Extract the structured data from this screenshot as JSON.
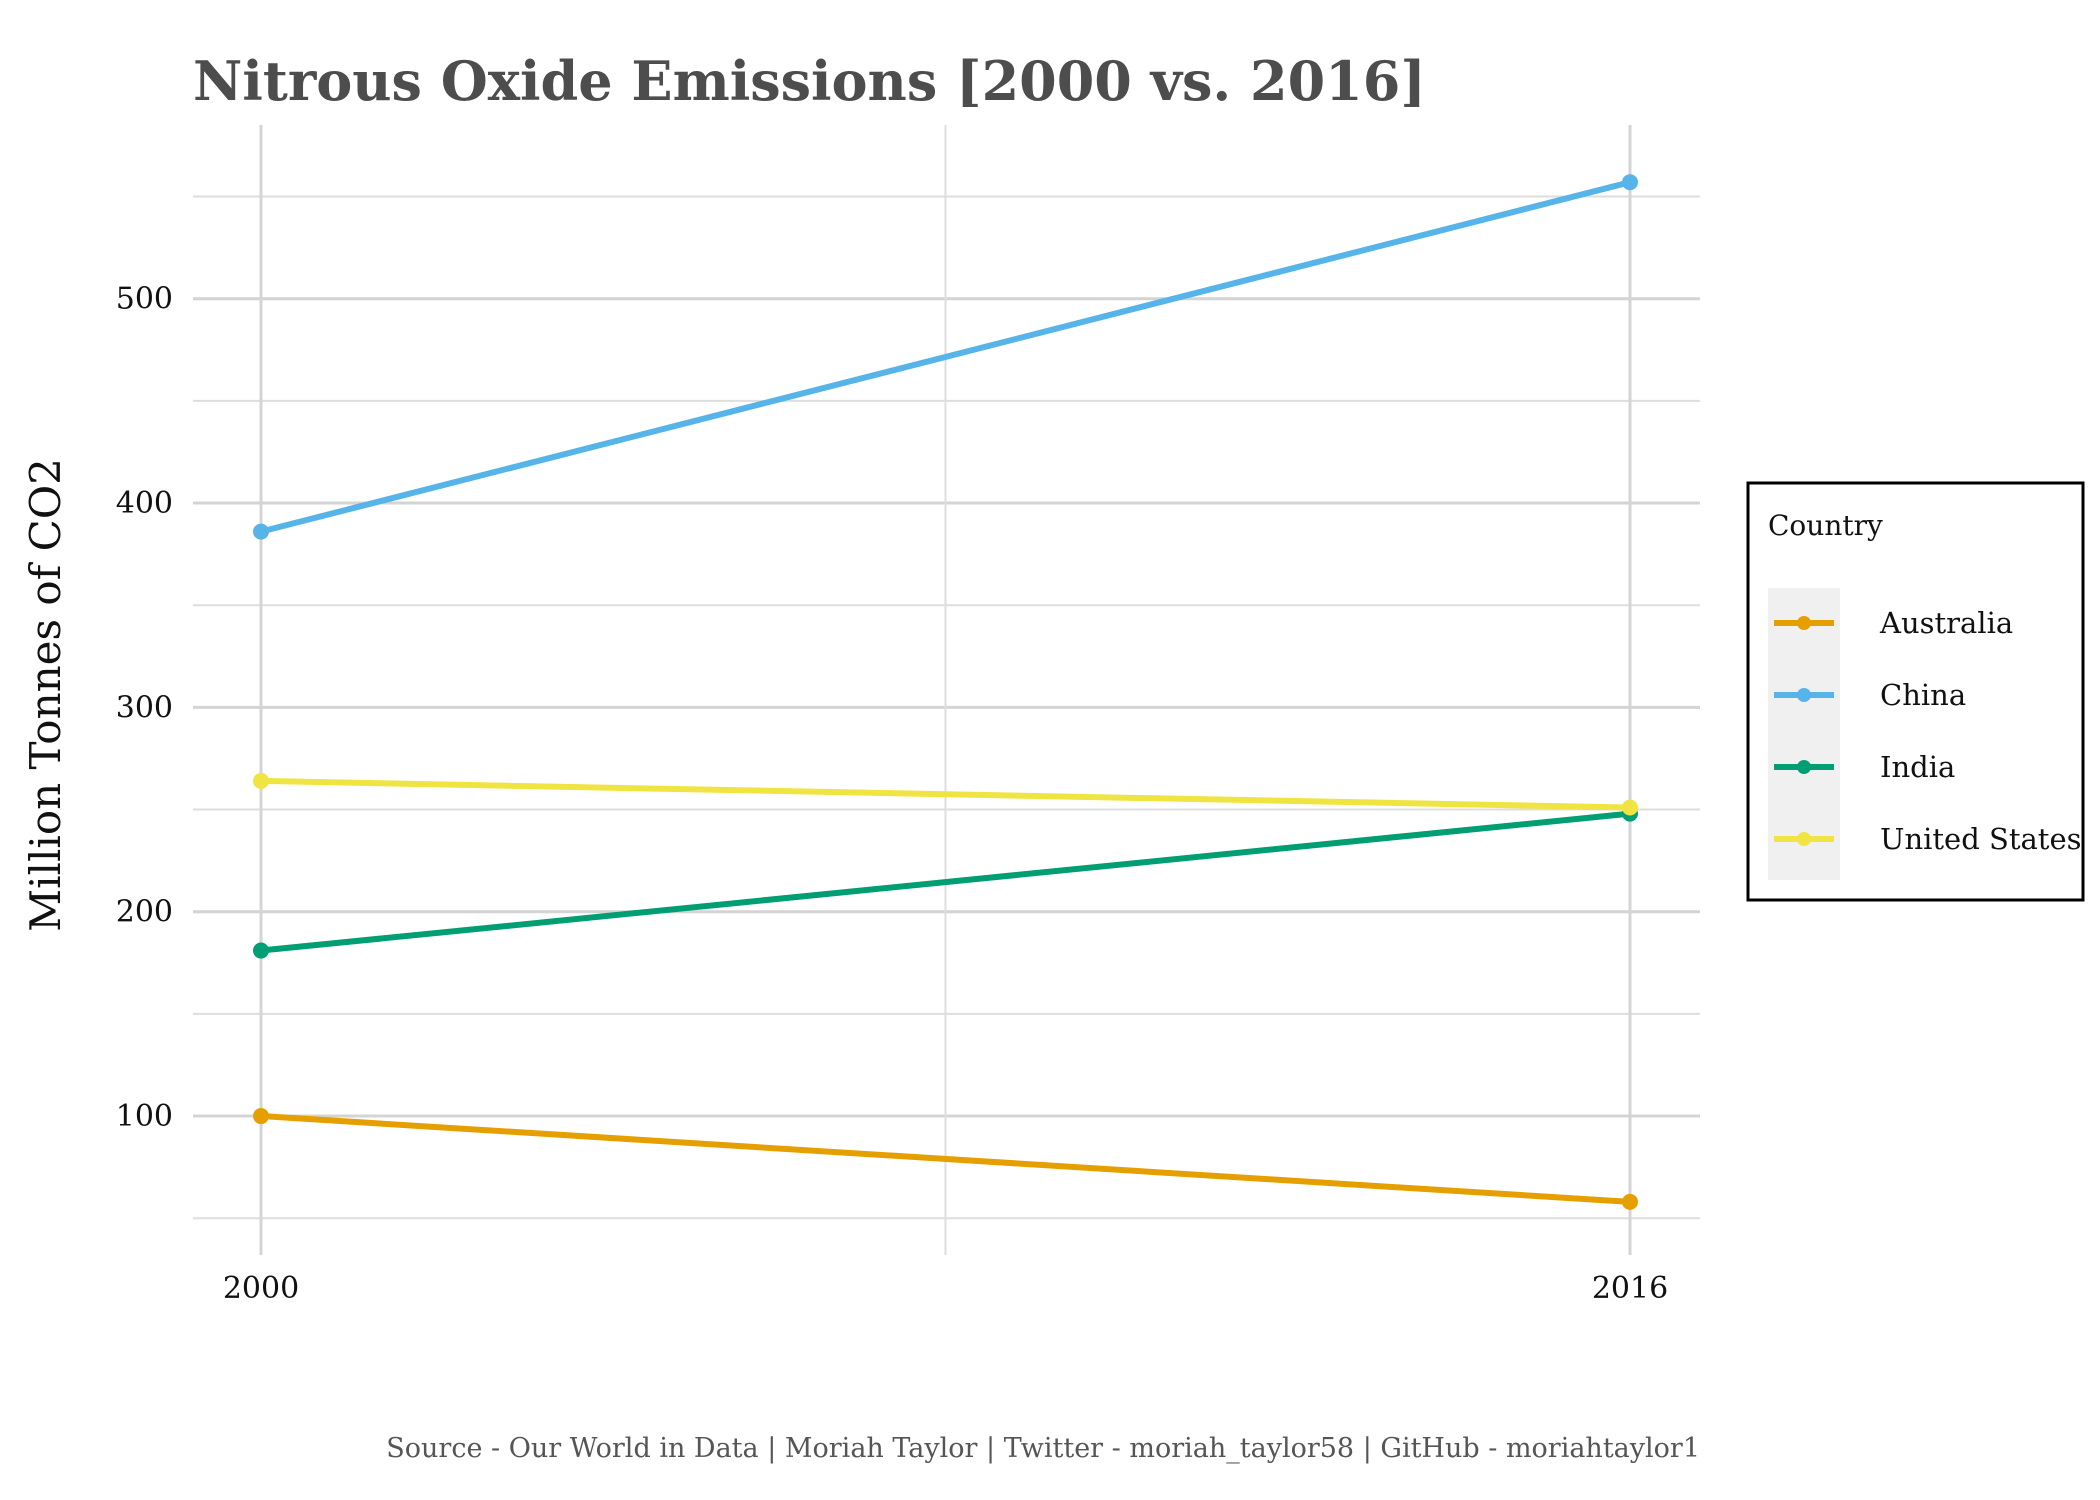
{
  "chart_data": {
    "type": "line",
    "title": "Nitrous Oxide Emissions [2000 vs. 2016]",
    "ylabel": "Million Tonnes of CO2",
    "xlabel": "",
    "x": [
      2000,
      2016
    ],
    "xticks": [
      "2000",
      "2016"
    ],
    "yticks": [
      100,
      200,
      300,
      400,
      500
    ],
    "ylim": [
      32,
      585
    ],
    "grid": true,
    "legend_position": "right",
    "legend_title": "Country",
    "series": [
      {
        "name": "Australia",
        "color": "#E69F00",
        "values": [
          100,
          58
        ]
      },
      {
        "name": "China",
        "color": "#56B4E9",
        "values": [
          386,
          557
        ]
      },
      {
        "name": "India",
        "color": "#009E73",
        "values": [
          181,
          248
        ]
      },
      {
        "name": "United States",
        "color": "#F0E442",
        "values": [
          264,
          251
        ]
      }
    ],
    "caption": "Source - Our World in Data | Moriah Taylor | Twitter - moriah_taylor58 | GitHub - moriahtaylor1"
  }
}
